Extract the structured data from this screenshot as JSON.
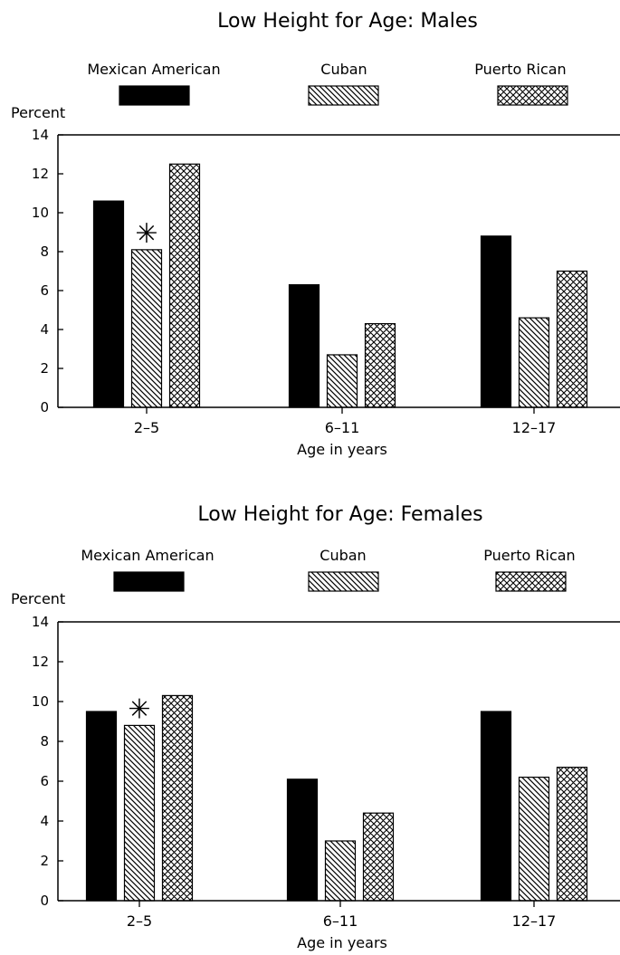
{
  "chart_data": [
    {
      "type": "bar",
      "title": "Low Height for Age: Males",
      "ylabel": "Percent",
      "xlabel": "Age in years",
      "categories": [
        "2–5",
        "6–11",
        "12–17"
      ],
      "ylim": [
        0,
        14
      ],
      "yticks": [
        0,
        2,
        4,
        6,
        8,
        10,
        12,
        14
      ],
      "legend_placement": "top",
      "series": [
        {
          "name": "Mexican American",
          "pattern": "solid",
          "values": [
            10.6,
            6.3,
            8.8
          ]
        },
        {
          "name": "Cuban",
          "pattern": "diagonal",
          "values": [
            8.1,
            2.7,
            4.6
          ]
        },
        {
          "name": "Puerto Rican",
          "pattern": "crosshatch",
          "values": [
            12.5,
            4.3,
            7.0
          ]
        }
      ],
      "annotations": [
        {
          "series": 1,
          "category": 0,
          "symbol": "✳"
        }
      ]
    },
    {
      "type": "bar",
      "title": "Low Height for Age: Females",
      "ylabel": "Percent",
      "xlabel": "Age in years",
      "categories": [
        "2–5",
        "6–11",
        "12–17"
      ],
      "ylim": [
        0,
        14
      ],
      "yticks": [
        0,
        2,
        4,
        6,
        8,
        10,
        12,
        14
      ],
      "legend_placement": "top",
      "series": [
        {
          "name": "Mexican American",
          "pattern": "solid",
          "values": [
            9.5,
            6.1,
            9.5
          ]
        },
        {
          "name": "Cuban",
          "pattern": "diagonal",
          "values": [
            8.8,
            3.0,
            6.2
          ]
        },
        {
          "name": "Puerto Rican",
          "pattern": "crosshatch",
          "values": [
            10.3,
            4.4,
            6.7
          ]
        }
      ],
      "annotations": [
        {
          "series": 1,
          "category": 0,
          "symbol": "✳"
        }
      ]
    }
  ],
  "colors": {
    "ink": "#000000",
    "background": "#ffffff"
  }
}
